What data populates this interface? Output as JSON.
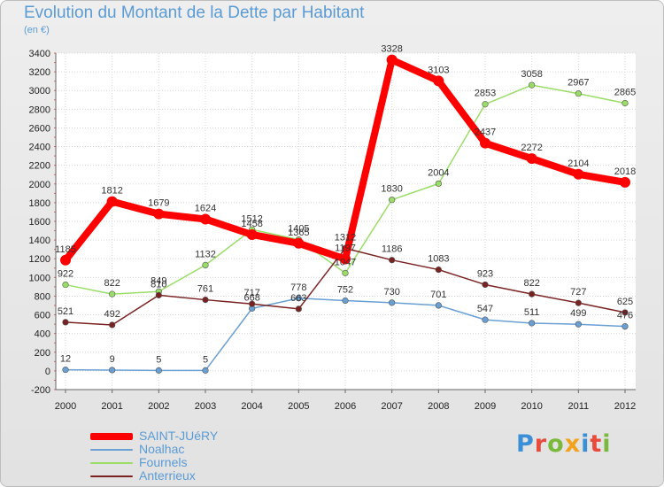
{
  "header": {
    "title": "Evolution du Montant de la Dette par Habitant",
    "subtitle": "(en €)"
  },
  "logo": {
    "text": "Proxiti",
    "colors": [
      "#3a8fd6",
      "#e84b3c",
      "#7ab93c",
      "#f2a21b",
      "#3a8fd6",
      "#e84b3c",
      "#7ab93c"
    ]
  },
  "chart_data": {
    "type": "line",
    "title": "Evolution du Montant de la Dette par Habitant",
    "subtitle": "(en €)",
    "x": [
      "2000",
      "2001",
      "2002",
      "2003",
      "2004",
      "2005",
      "2006",
      "2007",
      "2008",
      "2009",
      "2010",
      "2011",
      "2012"
    ],
    "ylim": [
      -200,
      3400
    ],
    "yticks": [
      -200,
      0,
      200,
      400,
      600,
      800,
      1000,
      1200,
      1400,
      1600,
      1800,
      2000,
      2200,
      2400,
      2600,
      2800,
      3000,
      3200,
      3400
    ],
    "grid": true,
    "legend_position": "bottom-left",
    "series": [
      {
        "name": "SAINT-JUéRY",
        "color": "#ff0000",
        "values": [
          1185,
          1812,
          1679,
          1624,
          1458,
          1365,
          1197,
          3328,
          3103,
          2437,
          2272,
          2104,
          2018
        ]
      },
      {
        "name": "Noalhac",
        "color": "#6a9fd4",
        "values": [
          12,
          9,
          5,
          5,
          668,
          778,
          752,
          730,
          701,
          547,
          511,
          499,
          476
        ]
      },
      {
        "name": "Fournels",
        "color": "#99dd66",
        "values": [
          922,
          822,
          849,
          1132,
          1512,
          1405,
          1047,
          1830,
          2004,
          2853,
          3058,
          2967,
          2865
        ]
      },
      {
        "name": "Anterrieux",
        "color": "#7a2222",
        "values": [
          521,
          492,
          810,
          761,
          717,
          663,
          1312,
          1186,
          1083,
          923,
          822,
          727,
          625
        ]
      }
    ]
  }
}
